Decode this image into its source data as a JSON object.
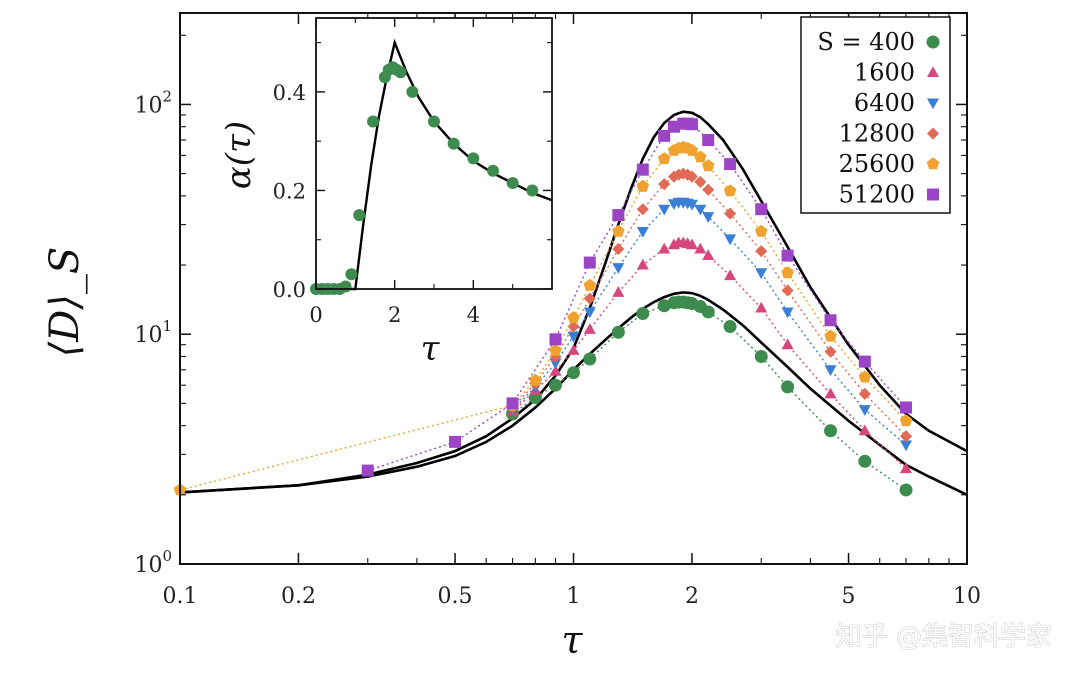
{
  "watermark": "知乎 @集智科学家",
  "chart_data": [
    {
      "type": "scatter",
      "xlabel": "τ",
      "ylabel": "⟨D⟩_S",
      "x_scale": "log",
      "y_scale": "log",
      "xlim": [
        0.1,
        10
      ],
      "ylim": [
        1,
        250
      ],
      "x_ticks": [
        {
          "value": 0.1,
          "label": "0.1"
        },
        {
          "value": 0.2,
          "label": "0.2"
        },
        {
          "value": 0.5,
          "label": "0.5"
        },
        {
          "value": 1,
          "label": "1"
        },
        {
          "value": 2,
          "label": "2"
        },
        {
          "value": 5,
          "label": "5"
        },
        {
          "value": 10,
          "label": "10"
        }
      ],
      "y_ticks": [
        {
          "value": 1,
          "base": "10",
          "exp": "0"
        },
        {
          "value": 10,
          "base": "10",
          "exp": "1"
        },
        {
          "value": 100,
          "base": "10",
          "exp": "2"
        }
      ],
      "legend_position": "top-right",
      "series": [
        {
          "name": "S = 400",
          "marker": "circle",
          "color": "#3d8b4f",
          "x": [
            0.7,
            0.8,
            0.9,
            1.0,
            1.1,
            1.3,
            1.5,
            1.7,
            1.8,
            1.85,
            1.9,
            1.95,
            2.0,
            2.1,
            2.2,
            2.5,
            3.0,
            3.5,
            4.5,
            5.5,
            7.0
          ],
          "y": [
            4.5,
            5.3,
            6.0,
            6.8,
            7.8,
            10.2,
            12.3,
            13.3,
            13.7,
            13.8,
            13.8,
            13.7,
            13.6,
            13.2,
            12.5,
            10.8,
            8.0,
            5.9,
            3.8,
            2.8,
            2.1
          ]
        },
        {
          "name": "1600",
          "marker": "triangle-up",
          "color": "#d6487c",
          "x": [
            0.7,
            0.8,
            0.9,
            1.0,
            1.1,
            1.3,
            1.5,
            1.7,
            1.8,
            1.85,
            1.9,
            1.95,
            2.0,
            2.1,
            2.2,
            2.5,
            3.0,
            3.5,
            4.5,
            5.5,
            7.0
          ],
          "y": [
            4.6,
            5.7,
            6.9,
            8.5,
            10.5,
            15.2,
            20.0,
            23.5,
            24.5,
            25.0,
            25.0,
            24.8,
            24.5,
            23.5,
            22.0,
            18.0,
            13.0,
            9.0,
            5.5,
            3.8,
            2.6
          ]
        },
        {
          "name": "6400",
          "marker": "triangle-down",
          "color": "#3a7fd5",
          "x": [
            0.7,
            0.8,
            0.9,
            1.0,
            1.1,
            1.3,
            1.5,
            1.7,
            1.8,
            1.85,
            1.9,
            1.95,
            2.0,
            2.1,
            2.2,
            2.5,
            3.0,
            3.5,
            4.5,
            5.5,
            7.0
          ],
          "y": [
            4.7,
            5.9,
            7.5,
            9.8,
            12.5,
            19.5,
            28.0,
            35.0,
            37.0,
            37.5,
            37.5,
            37.2,
            36.8,
            35.0,
            32.5,
            26.0,
            18.5,
            12.5,
            7.0,
            4.7,
            3.3
          ]
        },
        {
          "name": "12800",
          "marker": "diamond",
          "color": "#e06a55",
          "x": [
            0.7,
            0.8,
            0.9,
            1.0,
            1.1,
            1.3,
            1.5,
            1.7,
            1.8,
            1.85,
            1.9,
            1.95,
            2.0,
            2.1,
            2.2,
            2.5,
            3.0,
            3.5,
            4.5,
            5.5,
            7.0
          ],
          "y": [
            4.8,
            6.1,
            8.0,
            10.8,
            14.3,
            23.5,
            35.0,
            45.0,
            48.5,
            49.5,
            50.0,
            49.5,
            48.5,
            46.0,
            42.5,
            33.5,
            23.0,
            15.5,
            8.4,
            5.5,
            3.6
          ]
        },
        {
          "name": "25600",
          "marker": "pentagon",
          "color": "#f0a22e",
          "x": [
            0.1,
            0.7,
            0.8,
            0.9,
            1.0,
            1.1,
            1.3,
            1.5,
            1.7,
            1.8,
            1.85,
            1.9,
            1.95,
            2.0,
            2.1,
            2.2,
            2.5,
            3.0,
            3.5,
            4.5,
            5.5,
            7.0
          ],
          "y": [
            2.1,
            4.9,
            6.3,
            8.5,
            11.8,
            16.3,
            28.0,
            44.0,
            58.0,
            63.0,
            64.5,
            65.0,
            64.5,
            63.0,
            59.0,
            54.0,
            42.0,
            28.0,
            18.5,
            9.8,
            6.5,
            4.2
          ]
        },
        {
          "name": "51200",
          "marker": "square",
          "color": "#9b45c6",
          "x": [
            0.3,
            0.5,
            0.7,
            0.9,
            1.1,
            1.3,
            1.5,
            1.7,
            1.8,
            1.9,
            1.95,
            2.0,
            2.2,
            2.5,
            3.0,
            3.5,
            4.5,
            5.5,
            7.0
          ],
          "y": [
            2.55,
            3.4,
            5.0,
            9.5,
            20.5,
            33.0,
            52.0,
            73.0,
            80.0,
            82.5,
            82.5,
            82.0,
            70.0,
            55.0,
            35.0,
            22.0,
            11.5,
            7.6,
            4.8
          ]
        }
      ],
      "curves": [
        {
          "role": "upper-bound",
          "color": "#000000",
          "x": [
            0.1,
            0.2,
            0.3,
            0.4,
            0.5,
            0.6,
            0.7,
            0.8,
            0.9,
            1.0,
            1.1,
            1.2,
            1.3,
            1.4,
            1.5,
            1.6,
            1.7,
            1.8,
            1.9,
            2.0,
            2.1,
            2.2,
            2.4,
            2.7,
            3.0,
            3.5,
            4.0,
            5.0,
            6.0,
            7.0,
            8.0,
            10.0
          ],
          "y": [
            2.05,
            2.2,
            2.45,
            2.75,
            3.1,
            3.6,
            4.3,
            5.2,
            6.6,
            8.7,
            13.0,
            20.0,
            30.0,
            43.0,
            58.0,
            72.0,
            83.0,
            90.0,
            93.0,
            92.0,
            88.0,
            82.0,
            70.0,
            52.0,
            38.0,
            24.0,
            16.0,
            9.0,
            6.0,
            4.5,
            3.8,
            3.1
          ]
        },
        {
          "role": "lower-bound",
          "color": "#000000",
          "x": [
            0.1,
            0.2,
            0.3,
            0.4,
            0.5,
            0.6,
            0.7,
            0.8,
            0.9,
            1.0,
            1.1,
            1.2,
            1.3,
            1.4,
            1.5,
            1.6,
            1.7,
            1.8,
            1.9,
            2.0,
            2.1,
            2.2,
            2.4,
            2.7,
            3.0,
            3.5,
            4.0,
            5.0,
            6.0,
            7.0,
            8.0,
            10.0
          ],
          "y": [
            2.05,
            2.2,
            2.4,
            2.65,
            2.95,
            3.4,
            4.0,
            4.8,
            5.8,
            7.0,
            8.2,
            9.4,
            10.6,
            11.8,
            12.9,
            13.8,
            14.5,
            15.0,
            15.2,
            15.1,
            14.7,
            14.1,
            12.8,
            10.9,
            9.2,
            7.2,
            5.8,
            4.2,
            3.3,
            2.7,
            2.4,
            2.0
          ]
        }
      ]
    },
    {
      "type": "scatter",
      "xlabel": "τ",
      "ylabel": "α(τ)",
      "xlim": [
        0,
        6
      ],
      "ylim": [
        0,
        0.55
      ],
      "x_ticks": [
        {
          "value": 0,
          "label": "0"
        },
        {
          "value": 2,
          "label": "2"
        },
        {
          "value": 4,
          "label": "4"
        }
      ],
      "y_ticks": [
        {
          "value": 0,
          "label": "0.0"
        },
        {
          "value": 0.2,
          "label": "0.2"
        },
        {
          "value": 0.4,
          "label": "0.4"
        }
      ],
      "series": [
        {
          "marker": "circle",
          "color": "#3d8b4f",
          "x": [
            0.0,
            0.15,
            0.3,
            0.45,
            0.6,
            0.75,
            0.9,
            1.1,
            1.45,
            1.75,
            1.85,
            1.95,
            2.05,
            2.15,
            2.45,
            3.0,
            3.5,
            4.0,
            4.5,
            5.0,
            5.5
          ],
          "y": [
            0.0,
            0.0,
            0.0,
            0.0,
            0.0,
            0.005,
            0.03,
            0.15,
            0.34,
            0.43,
            0.445,
            0.45,
            0.445,
            0.44,
            0.4,
            0.34,
            0.295,
            0.265,
            0.24,
            0.215,
            0.2
          ]
        }
      ],
      "curves": [
        {
          "role": "theory",
          "color": "#000000",
          "x": [
            0.0,
            0.9,
            1.0,
            1.2,
            1.4,
            1.6,
            1.8,
            2.0,
            2.3,
            2.6,
            3.0,
            3.5,
            4.0,
            4.5,
            5.0,
            5.5,
            6.0
          ],
          "y": [
            0.0,
            0.0,
            0.0,
            0.13,
            0.25,
            0.35,
            0.43,
            0.5,
            0.44,
            0.39,
            0.34,
            0.295,
            0.26,
            0.235,
            0.215,
            0.195,
            0.18
          ]
        }
      ]
    }
  ]
}
